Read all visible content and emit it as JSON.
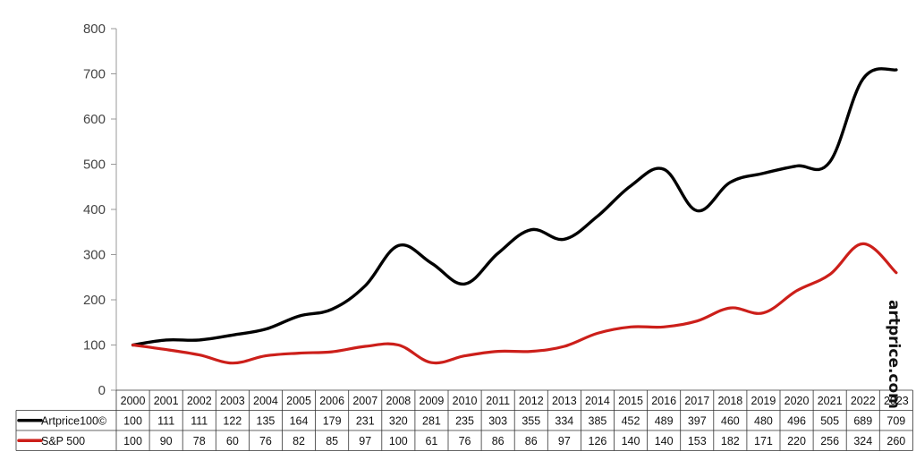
{
  "chart_data": {
    "type": "line",
    "categories": [
      "2000",
      "2001",
      "2002",
      "2003",
      "2004",
      "2005",
      "2006",
      "2007",
      "2008",
      "2009",
      "2010",
      "2011",
      "2012",
      "2013",
      "2014",
      "2015",
      "2016",
      "2017",
      "2018",
      "2019",
      "2020",
      "2021",
      "2022",
      "2023"
    ],
    "series": [
      {
        "name": "Artprice100©",
        "color": "#000000",
        "values": [
          100,
          111,
          111,
          122,
          135,
          164,
          179,
          231,
          320,
          281,
          235,
          303,
          355,
          334,
          385,
          452,
          489,
          397,
          460,
          480,
          496,
          505,
          689,
          709
        ]
      },
      {
        "name": "S&P 500",
        "color": "#cc1f1a",
        "values": [
          100,
          90,
          78,
          60,
          76,
          82,
          85,
          97,
          100,
          61,
          76,
          86,
          86,
          97,
          126,
          140,
          140,
          153,
          182,
          171,
          220,
          256,
          324,
          260
        ]
      }
    ],
    "yticks": [
      "0",
      "100",
      "200",
      "300",
      "400",
      "500",
      "600",
      "700",
      "800"
    ],
    "ylim": [
      0,
      800
    ],
    "grid": false,
    "legend": "data table below chart",
    "watermark": "artprice.com"
  }
}
